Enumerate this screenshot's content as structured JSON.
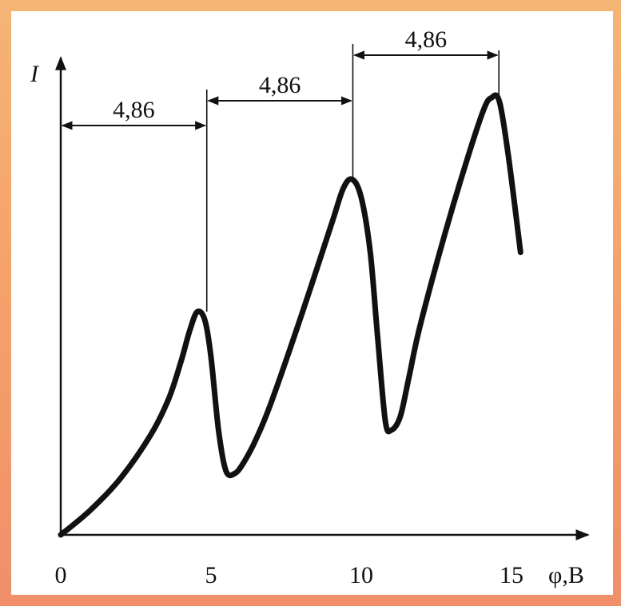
{
  "chart_data": {
    "type": "line",
    "title": "",
    "xlabel": "φ,B",
    "ylabel": "I",
    "x_ticks": [
      "0",
      "5",
      "10",
      "15"
    ],
    "xlim": [
      0,
      17
    ],
    "ylim": [
      0,
      1
    ],
    "grid": false,
    "legend": "none",
    "series": [
      {
        "x": [
          0,
          1,
          2,
          3,
          3.6,
          4,
          4.3,
          4.55,
          4.8,
          5.0,
          5.25,
          5.5,
          5.8,
          6.1,
          6.5,
          7,
          8,
          9,
          9.4,
          9.7,
          10.0,
          10.3,
          10.55,
          10.8,
          11.0,
          11.3,
          11.6,
          12,
          13,
          14,
          14.35,
          14.6,
          14.9,
          15.3
        ],
        "y": [
          0,
          0.055,
          0.125,
          0.22,
          0.3,
          0.38,
          0.45,
          0.49,
          0.47,
          0.39,
          0.23,
          0.14,
          0.135,
          0.16,
          0.21,
          0.29,
          0.48,
          0.68,
          0.76,
          0.78,
          0.74,
          0.62,
          0.43,
          0.25,
          0.23,
          0.26,
          0.35,
          0.47,
          0.71,
          0.92,
          0.96,
          0.95,
          0.83,
          0.62
        ]
      }
    ],
    "annotations": [
      {
        "label": "4,86",
        "from": 0,
        "to": 4.86
      },
      {
        "label": "4,86",
        "from": 4.86,
        "to": 9.72
      },
      {
        "label": "4,86",
        "from": 9.72,
        "to": 14.58
      }
    ]
  }
}
